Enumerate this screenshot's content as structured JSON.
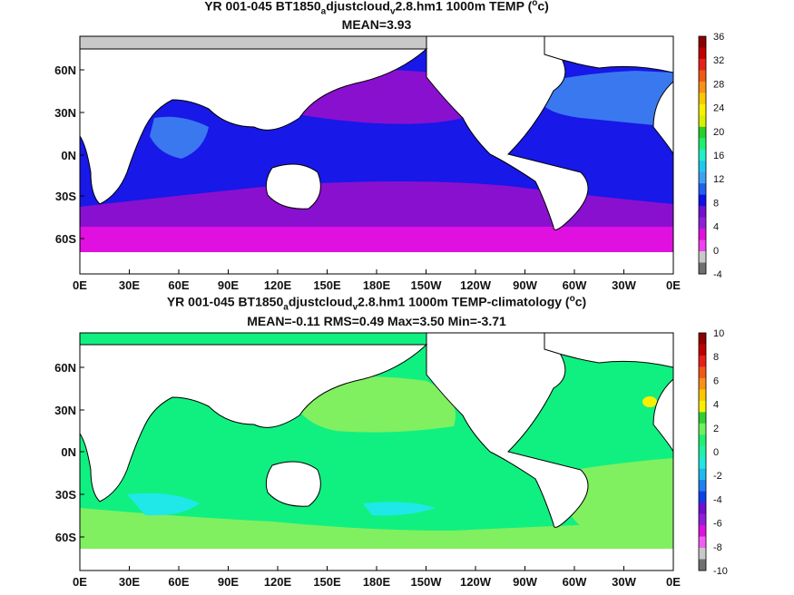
{
  "panel1": {
    "title_line1": "YR 001-045 BT1850",
    "title_sub1": "a",
    "title_mid": "djustcloud",
    "title_sub2": "v",
    "title_end": "2.8.hm1 1000m TEMP (",
    "title_sup": "o",
    "title_close": "c)",
    "subtitle": "MEAN=3.93",
    "lat_labels": [
      "60N",
      "30N",
      "0N",
      "30S",
      "60S"
    ],
    "colorbar_labels": [
      "36",
      "32",
      "28",
      "24",
      "20",
      "16",
      "12",
      "8",
      "4",
      "0",
      "-4"
    ],
    "colorbar_colors": [
      "#8b0000",
      "#c00000",
      "#e8201a",
      "#f05a14",
      "#f8901a",
      "#f8c800",
      "#f8f000",
      "#d8f000",
      "#28d028",
      "#20f070",
      "#20f0c8",
      "#20c8f0",
      "#40a0f0",
      "#2060f0",
      "#1010e8",
      "#7010d0",
      "#9020d8",
      "#e010e0",
      "#f040f0",
      "#c8c8c8",
      "#707070"
    ]
  },
  "panel2": {
    "title_line1": "YR 001-045 BT1850",
    "title_sub1": "a",
    "title_mid": "djustcloud",
    "title_sub2": "v",
    "title_end": "2.8.hm1 1000m TEMP-climatology (",
    "title_sup": "o",
    "title_close": "c)",
    "subtitle": "MEAN=-0.11   RMS=0.49   Max=3.50   Min=-3.71",
    "lat_labels": [
      "60N",
      "30N",
      "0N",
      "30S",
      "60S"
    ],
    "colorbar_labels": [
      "10",
      "8",
      "6",
      "4",
      "2",
      "0",
      "-2",
      "-4",
      "-6",
      "-8",
      "-10"
    ],
    "colorbar_colors": [
      "#8b0000",
      "#c00000",
      "#e8201a",
      "#f05a14",
      "#f8901a",
      "#f8c800",
      "#f8f000",
      "#30d030",
      "#70f060",
      "#20f070",
      "#20f0a8",
      "#20e8e0",
      "#20b8f0",
      "#2080f0",
      "#1040e8",
      "#7010d0",
      "#9020d8",
      "#e010e0",
      "#f060f0",
      "#c8c8c8",
      "#707070"
    ]
  },
  "lon_labels": [
    "0E",
    "30E",
    "60E",
    "90E",
    "120E",
    "150E",
    "180E",
    "150W",
    "120W",
    "90W",
    "60W",
    "30W",
    "0E"
  ],
  "colors": {
    "land": "#ffffff",
    "ice": "#c8c8c8",
    "p1_deep": "#1818e8",
    "p1_purple": "#8a10d0",
    "p1_magenta": "#e010e0",
    "p1_lightblue": "#3a78f0",
    "p2_green": "#10f080",
    "p2_lightgreen": "#80f060",
    "p2_cyan": "#20e8e8"
  }
}
